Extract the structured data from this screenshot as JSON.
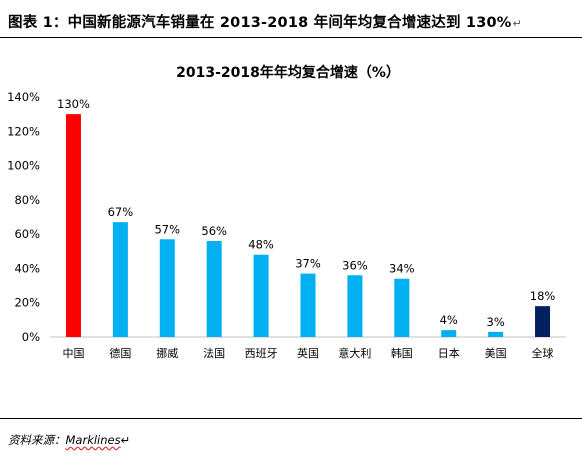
{
  "caption": {
    "text": "图表 1：中国新能源汽车销量在 2013-2018 年间年均复合增速达到 130%",
    "mark": "↵"
  },
  "source": {
    "label": "资料来源：",
    "value": "Marklines",
    "mark": "↵"
  },
  "chart_data": {
    "type": "bar",
    "title": "2013-2018年年均复合增速（%）",
    "categories": [
      "中国",
      "德国",
      "挪威",
      "法国",
      "西班牙",
      "英国",
      "意大利",
      "韩国",
      "日本",
      "美国",
      "全球"
    ],
    "values": [
      130,
      67,
      57,
      56,
      48,
      37,
      36,
      34,
      4,
      3,
      18
    ],
    "data_labels": [
      "130%",
      "67%",
      "57%",
      "56%",
      "48%",
      "37%",
      "36%",
      "34%",
      "4%",
      "3%",
      "18%"
    ],
    "colors": [
      "#ff0000",
      "#00b0f0",
      "#00b0f0",
      "#00b0f0",
      "#00b0f0",
      "#00b0f0",
      "#00b0f0",
      "#00b0f0",
      "#00b0f0",
      "#00b0f0",
      "#002060"
    ],
    "ylim": [
      0,
      140
    ],
    "yticks": [
      0,
      20,
      40,
      60,
      80,
      100,
      120,
      140
    ],
    "ytick_labels": [
      "0%",
      "20%",
      "40%",
      "60%",
      "80%",
      "100%",
      "120%",
      "140%"
    ],
    "xlabel": "",
    "ylabel": "",
    "grid": false,
    "legend": "none"
  }
}
